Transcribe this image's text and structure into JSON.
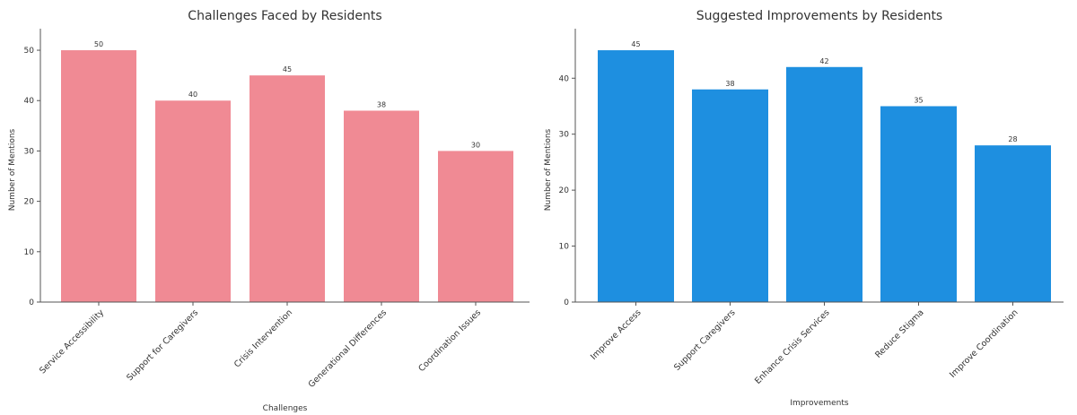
{
  "chart_data": [
    {
      "type": "bar",
      "title": "Challenges Faced by Residents",
      "xlabel": "Challenges",
      "ylabel": "Number of Mentions",
      "categories": [
        "Service Accessibility",
        "Support for Caregivers",
        "Crisis Intervention",
        "Generational Differences",
        "Coordination Issues"
      ],
      "values": [
        50,
        40,
        45,
        38,
        30
      ],
      "ylim": [
        0,
        52.5
      ],
      "yticks": [
        0,
        10,
        20,
        30,
        40,
        50
      ],
      "bar_color": "#f08a94",
      "data_labels": true,
      "grid": false
    },
    {
      "type": "bar",
      "title": "Suggested Improvements by Residents",
      "xlabel": "Improvements",
      "ylabel": "Number of Mentions",
      "categories": [
        "Improve Access",
        "Support Caregivers",
        "Enhance Crisis Services",
        "Reduce Stigma",
        "Improve Coordination"
      ],
      "values": [
        45,
        38,
        42,
        35,
        28
      ],
      "ylim": [
        0,
        47.25
      ],
      "yticks": [
        0,
        10,
        20,
        30,
        40
      ],
      "bar_color": "#1e8fe0",
      "data_labels": true,
      "grid": false
    }
  ]
}
